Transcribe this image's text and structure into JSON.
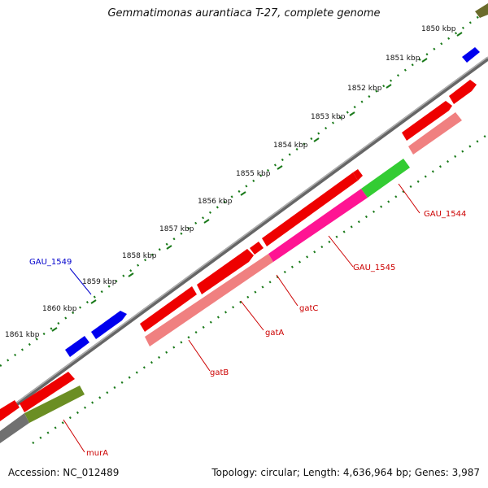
{
  "title": "Gemmatimonas aurantiaca T-27, complete genome",
  "footer": {
    "accession": "Accession: NC_012489",
    "summary": "Topology: circular; Length: 4,636,964 bp; Genes: 3,987"
  },
  "colors": {
    "cds": "#ff0000",
    "cds_light": "#f08080",
    "rna": "#0000ff",
    "label_red": "#cc0000",
    "label_blue": "#0000cc",
    "backbone": "#808080",
    "tick": "#1a7a1a",
    "pink": "#ff1493",
    "green": "#33cc33",
    "olive": "#6b8e23"
  },
  "scale": {
    "ticks": [
      {
        "label": "1850 kbp"
      },
      {
        "label": "1851 kbp"
      },
      {
        "label": "1852 kbp"
      },
      {
        "label": "1853 kbp"
      },
      {
        "label": "1854 kbp"
      },
      {
        "label": "1855 kbp"
      },
      {
        "label": "1856 kbp"
      },
      {
        "label": "1857 kbp"
      },
      {
        "label": "1858 kbp"
      },
      {
        "label": "1859 kbp"
      },
      {
        "label": "1860 kbp"
      },
      {
        "label": "1861 kbp"
      }
    ]
  },
  "gene_labels": [
    {
      "text": "GAU_1549",
      "color": "label_blue"
    },
    {
      "text": "GAU_1544",
      "color": "label_red"
    },
    {
      "text": "GAU_1545",
      "color": "label_red"
    },
    {
      "text": "gatC",
      "color": "label_red"
    },
    {
      "text": "gatA",
      "color": "label_red"
    },
    {
      "text": "gatB",
      "color": "label_red"
    },
    {
      "text": "murA",
      "color": "label_red"
    }
  ]
}
